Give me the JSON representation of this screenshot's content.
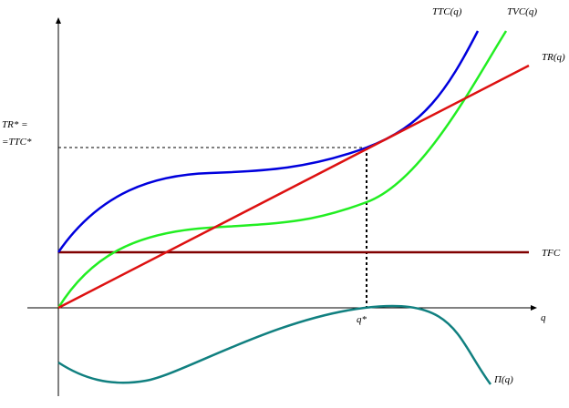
{
  "labels": {
    "ttc": "TTC(q)",
    "tvc": "TVC(q)",
    "tr": "TR(q)",
    "tr_star": "TR* =",
    "ttc_star": "=TTC*",
    "tfc": "TFC",
    "q_axis": "q",
    "q_star": "q*",
    "profit": "Π(q)"
  }
}
